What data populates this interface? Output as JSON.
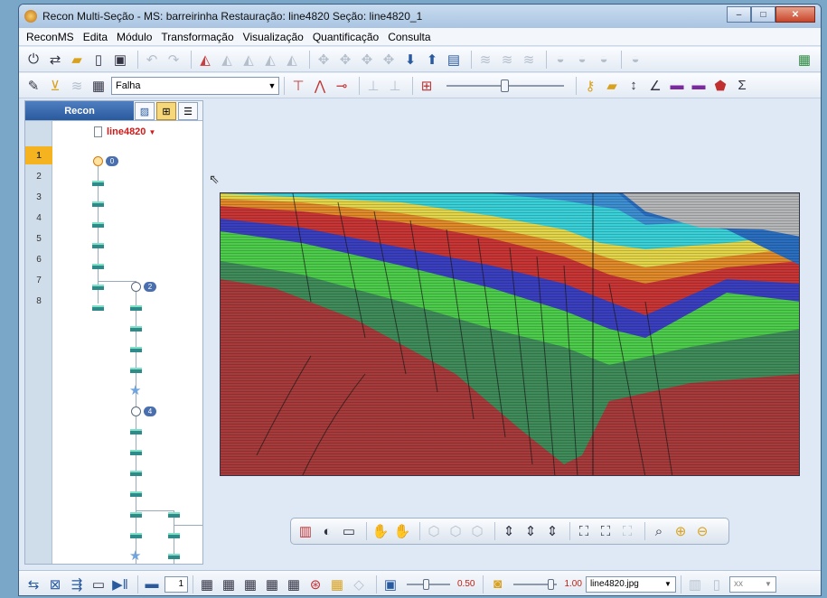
{
  "window": {
    "title": "Recon Multi-Seção - MS: barreirinha Restauração: line4820  Seção: line4820_1",
    "controls": {
      "minimize": "–",
      "maximize": "□",
      "close": "✕"
    }
  },
  "menu": [
    "ReconMS",
    "Edita",
    "Módulo",
    "Transformação",
    "Visualização",
    "Quantificação",
    "Consulta"
  ],
  "toolbar2": {
    "layer_select": "Falha"
  },
  "panel": {
    "title": "Recon",
    "section_name": "line4820",
    "section_arrow": "▼"
  },
  "tree": {
    "rows": [
      "1",
      "2",
      "3",
      "4",
      "5",
      "6",
      "7",
      "8"
    ],
    "selected_row": "1",
    "badges": [
      "0",
      "2",
      "4"
    ]
  },
  "statusbar": {
    "page_value": "1",
    "opacity_value": "0.50",
    "zoom_value": "1.00",
    "image_file": "line4820.jpg",
    "units_select": "xx"
  },
  "icons": {
    "toolbar1": [
      "power-icon",
      "swap-icon",
      "open-folder-icon",
      "new-file-icon",
      "save-icon",
      "undo-icon",
      "redo-icon"
    ],
    "colors": {
      "accent": "#2a5a9e",
      "selected_row": "#f5b41f",
      "section_label": "#d01a1a"
    }
  }
}
